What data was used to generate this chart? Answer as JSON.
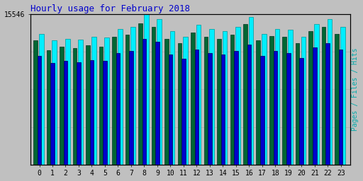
{
  "title": "Hourly usage for February 2018",
  "ylabel": "Pages / Files / Hits",
  "xlabel_vals": [
    0,
    1,
    2,
    3,
    4,
    5,
    6,
    7,
    8,
    9,
    10,
    11,
    12,
    13,
    14,
    15,
    16,
    17,
    18,
    19,
    20,
    21,
    22,
    23
  ],
  "pages": [
    12800,
    11800,
    12200,
    12000,
    12300,
    12200,
    13200,
    13400,
    14600,
    14200,
    13000,
    12500,
    13600,
    13200,
    13000,
    13400,
    14500,
    12800,
    13300,
    13200,
    12500,
    13800,
    14200,
    13500
  ],
  "files": [
    11200,
    10500,
    10700,
    10600,
    10800,
    10700,
    11500,
    11700,
    13000,
    12700,
    11400,
    10900,
    11900,
    11500,
    11400,
    11700,
    12400,
    11200,
    11700,
    11500,
    11000,
    12100,
    12500,
    11900
  ],
  "hits": [
    13500,
    12800,
    13000,
    12900,
    13200,
    13100,
    14000,
    14200,
    15546,
    15000,
    13800,
    13200,
    14400,
    14000,
    13800,
    14200,
    15200,
    13500,
    14000,
    13900,
    13200,
    14500,
    15000,
    14200
  ],
  "color_pages": "#006633",
  "color_files": "#0000cc",
  "color_hits": "#00eeff",
  "bg_color": "#c0c0c0",
  "plot_bg": "#c0c0c0",
  "title_color": "#0000cc",
  "ylabel_color": "#00aaaa",
  "ymax": 15546,
  "bar_width": 0.3
}
